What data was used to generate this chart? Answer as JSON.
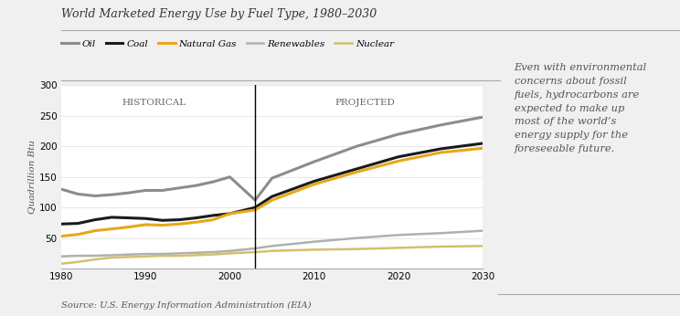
{
  "title": "World Marketed Energy Use by Fuel Type, 1980–2030",
  "source": "Source: U.S. Energy Information Administration (EIA)",
  "ylabel": "Quadrillion Btu",
  "ylim": [
    0,
    300
  ],
  "yticks": [
    50,
    100,
    150,
    200,
    250,
    300
  ],
  "xlim": [
    1980,
    2030
  ],
  "xticks": [
    1980,
    1990,
    2000,
    2010,
    2020,
    2030
  ],
  "divider_x": 2003,
  "historical_label": "HISTORICAL",
  "projected_label": "PROJECTED",
  "annotation": "Even with environmental\nconcerns about fossil\nfuels, hydrocarbons are\nexpected to make up\nmost of the world’s\nenergy supply for the\nforeseeable future.",
  "series": {
    "Oil": {
      "color": "#8c8c8c",
      "linewidth": 2.2,
      "years": [
        1980,
        1982,
        1984,
        1986,
        1988,
        1990,
        1992,
        1994,
        1996,
        1998,
        2000,
        2003,
        2005,
        2010,
        2015,
        2020,
        2025,
        2030
      ],
      "values": [
        130,
        122,
        119,
        121,
        124,
        128,
        128,
        132,
        136,
        142,
        150,
        112,
        148,
        175,
        200,
        220,
        235,
        248
      ]
    },
    "Coal": {
      "color": "#1a1a1a",
      "linewidth": 2.2,
      "years": [
        1980,
        1982,
        1984,
        1986,
        1988,
        1990,
        1992,
        1994,
        1996,
        1998,
        2000,
        2003,
        2005,
        2010,
        2015,
        2020,
        2025,
        2030
      ],
      "values": [
        73,
        74,
        80,
        84,
        83,
        82,
        79,
        80,
        83,
        87,
        90,
        100,
        118,
        143,
        163,
        183,
        196,
        205
      ]
    },
    "Natural Gas": {
      "color": "#e6a817",
      "linewidth": 2.2,
      "years": [
        1980,
        1982,
        1984,
        1986,
        1988,
        1990,
        1992,
        1994,
        1996,
        1998,
        2000,
        2003,
        2005,
        2010,
        2015,
        2020,
        2025,
        2030
      ],
      "values": [
        53,
        56,
        62,
        65,
        68,
        72,
        71,
        73,
        76,
        80,
        90,
        96,
        112,
        138,
        158,
        176,
        190,
        197
      ]
    },
    "Renewables": {
      "color": "#b0b0b0",
      "linewidth": 1.8,
      "years": [
        1980,
        1982,
        1984,
        1986,
        1988,
        1990,
        1992,
        1994,
        1996,
        1998,
        2000,
        2003,
        2005,
        2010,
        2015,
        2020,
        2025,
        2030
      ],
      "values": [
        20,
        21,
        21,
        22,
        23,
        24,
        24,
        25,
        26,
        27,
        29,
        33,
        37,
        44,
        50,
        55,
        58,
        62
      ]
    },
    "Nuclear": {
      "color": "#d4c06a",
      "linewidth": 1.8,
      "years": [
        1980,
        1982,
        1984,
        1986,
        1988,
        1990,
        1992,
        1994,
        1996,
        1998,
        2000,
        2003,
        2005,
        2010,
        2015,
        2020,
        2025,
        2030
      ],
      "values": [
        8,
        11,
        15,
        18,
        19,
        20,
        21,
        21,
        22,
        23,
        25,
        27,
        29,
        31,
        32,
        34,
        36,
        37
      ]
    }
  },
  "bg_color": "#f0f0f0",
  "plot_bg_color": "#ffffff",
  "sidebar_bg": "#ececec",
  "legend_labels": [
    "Oil",
    "Coal",
    "Natural Gas",
    "Renewables",
    "Nuclear"
  ]
}
